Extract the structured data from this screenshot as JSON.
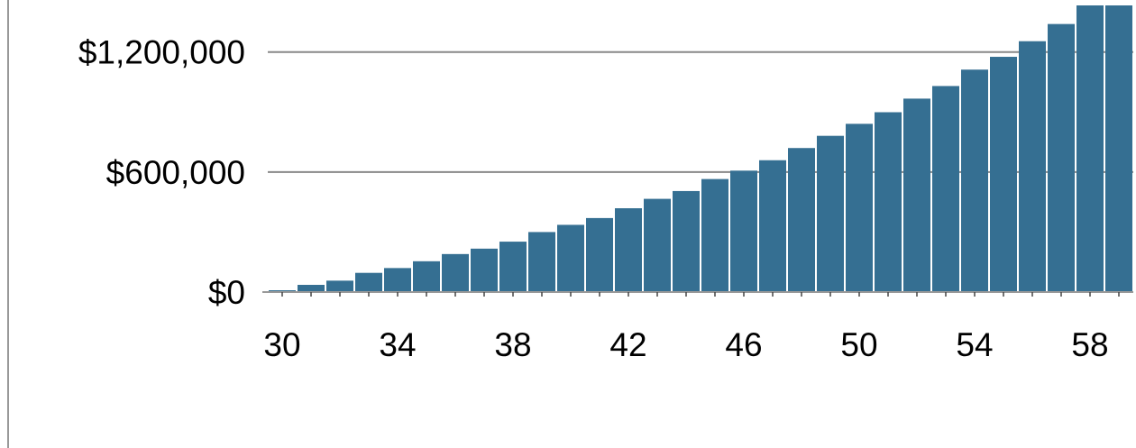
{
  "chart_data": {
    "type": "bar",
    "title": "",
    "xlabel": "",
    "ylabel": "",
    "x": [
      30,
      31,
      32,
      33,
      34,
      35,
      36,
      37,
      38,
      39,
      40,
      41,
      42,
      43,
      44,
      45,
      46,
      47,
      48,
      49,
      50,
      51,
      52,
      53,
      54,
      55,
      56,
      57,
      58,
      59
    ],
    "values": [
      9000,
      36000,
      57000,
      96000,
      120000,
      154000,
      190000,
      217000,
      252000,
      300000,
      336000,
      370000,
      419000,
      466000,
      505000,
      565000,
      607000,
      659000,
      720000,
      781000,
      841000,
      899000,
      967000,
      1030000,
      1112000,
      1176000,
      1254000,
      1340000,
      1433000,
      1433000
    ],
    "bar_color": "#356f92",
    "ylim": [
      0,
      1433000
    ],
    "y_ticks": [
      0,
      600000,
      1200000
    ],
    "y_tick_labels": [
      "$0",
      "$600,000",
      "$1,200,000"
    ],
    "x_tick_values": [
      30,
      34,
      38,
      42,
      46,
      50,
      54,
      58
    ],
    "x_tick_labels": [
      "30",
      "34",
      "38",
      "42",
      "46",
      "50",
      "54",
      "58"
    ],
    "grid": true,
    "gridline_color": "#888888",
    "axis_color": "#999999"
  }
}
